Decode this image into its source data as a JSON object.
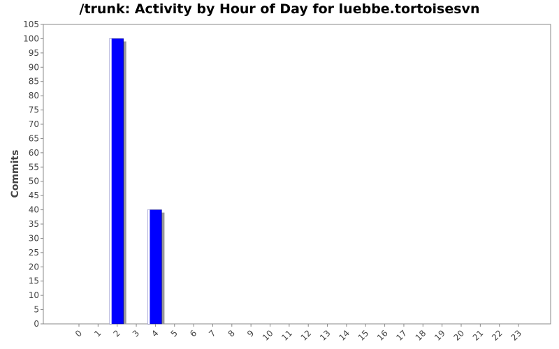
{
  "chart_data": {
    "type": "bar",
    "title": "/trunk: Activity by Hour of Day for luebbe.tortoisesvn",
    "xlabel": "",
    "ylabel": "Commits",
    "categories": [
      "0",
      "1",
      "2",
      "3",
      "4",
      "5",
      "6",
      "7",
      "8",
      "9",
      "10",
      "11",
      "12",
      "13",
      "14",
      "15",
      "16",
      "17",
      "18",
      "19",
      "20",
      "21",
      "22",
      "23"
    ],
    "values": [
      0,
      0,
      100,
      0,
      40,
      0,
      0,
      0,
      0,
      0,
      0,
      0,
      0,
      0,
      0,
      0,
      0,
      0,
      0,
      0,
      0,
      0,
      0,
      0
    ],
    "ylim": [
      0,
      105
    ],
    "yticks": [
      0,
      5,
      10,
      15,
      20,
      25,
      30,
      35,
      40,
      45,
      50,
      55,
      60,
      65,
      70,
      75,
      80,
      85,
      90,
      95,
      100,
      105
    ],
    "grid": false,
    "colors": {
      "bar": "#0000ff",
      "shadow": "#999999",
      "frame": "#888888"
    }
  }
}
